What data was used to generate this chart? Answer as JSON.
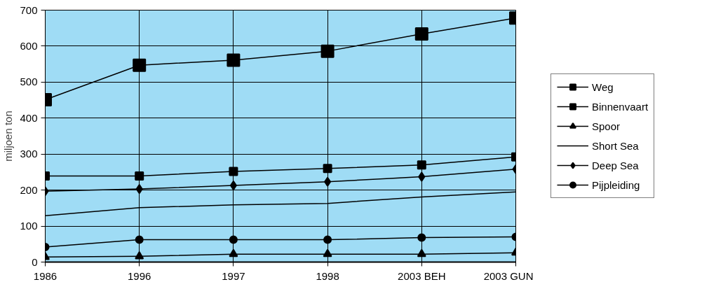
{
  "chart_data": {
    "type": "line",
    "ylabel": "miljoen ton",
    "categories": [
      "1986",
      "1996",
      "1997",
      "1998",
      "2003 BEH",
      "2003 GUN"
    ],
    "ylim": [
      0,
      700
    ],
    "yticks": [
      0,
      100,
      200,
      300,
      400,
      500,
      600,
      700
    ],
    "grid": true,
    "legend": "right",
    "series": [
      {
        "name": "Weg",
        "color": "#000000",
        "marker": "square",
        "values": [
          451,
          547,
          561,
          586,
          634,
          678
        ]
      },
      {
        "name": "Binnenvaart",
        "color": "#000000",
        "marker": "square",
        "values": [
          239,
          239,
          252,
          260,
          270,
          292
        ]
      },
      {
        "name": "Spoor",
        "color": "#000000",
        "marker": "triangle",
        "values": [
          14,
          16,
          22,
          22,
          22,
          26
        ]
      },
      {
        "name": "Short Sea",
        "color": "#000000",
        "marker": "none",
        "values": [
          129,
          151,
          159,
          163,
          181,
          195
        ]
      },
      {
        "name": "Deep Sea",
        "color": "#000000",
        "marker": "diamond",
        "values": [
          197,
          203,
          213,
          223,
          237,
          258
        ]
      },
      {
        "name": "Pijpleiding",
        "color": "#000000",
        "marker": "circle",
        "values": [
          42,
          62,
          62,
          62,
          68,
          70
        ]
      }
    ]
  }
}
